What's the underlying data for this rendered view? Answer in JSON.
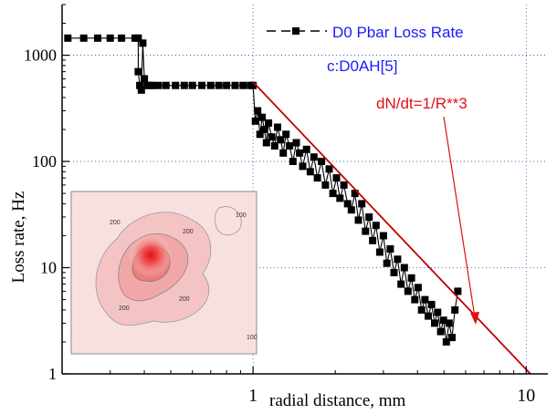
{
  "chart_data": {
    "type": "scatter",
    "title": "",
    "xlabel": "radial distance, mm",
    "ylabel": "Loss rate, Hz",
    "x_scale": "log",
    "y_scale": "log",
    "xlim": [
      0.2,
      12
    ],
    "ylim": [
      1,
      3000
    ],
    "x_ticks": [
      1,
      10
    ],
    "x_tick_labels": [
      "1",
      "10"
    ],
    "y_ticks": [
      1,
      10,
      100,
      1000
    ],
    "y_tick_labels": [
      "1",
      "10",
      "100",
      "1000"
    ],
    "grid": true,
    "legend_position": "top-right",
    "series": [
      {
        "name": "D0 Pbar Loss Rate",
        "color": "#000000",
        "marker": "square",
        "x": [
          0.21,
          0.24,
          0.27,
          0.3,
          0.33,
          0.37,
          0.38,
          0.38,
          0.385,
          0.39,
          0.395,
          0.4,
          0.41,
          0.42,
          0.43,
          0.45,
          0.48,
          0.52,
          0.56,
          0.6,
          0.65,
          0.7,
          0.75,
          0.8,
          0.86,
          0.92,
          0.98,
          1.0,
          1.02,
          1.04,
          1.06,
          1.08,
          1.1,
          1.12,
          1.14,
          1.17,
          1.2,
          1.23,
          1.26,
          1.29,
          1.32,
          1.36,
          1.4,
          1.44,
          1.48,
          1.52,
          1.57,
          1.62,
          1.67,
          1.72,
          1.78,
          1.84,
          1.9,
          1.96,
          2.02,
          2.08,
          2.15,
          2.22,
          2.29,
          2.36,
          2.43,
          2.5,
          2.58,
          2.66,
          2.74,
          2.82,
          2.91,
          3.0,
          3.09,
          3.18,
          3.28,
          3.38,
          3.48,
          3.58,
          3.69,
          3.8,
          3.91,
          4.02,
          4.14,
          4.26,
          4.38,
          4.5,
          4.62,
          4.74,
          4.86,
          4.98,
          5.1,
          5.22,
          5.35,
          5.48,
          5.62
        ],
        "y": [
          1450,
          1450,
          1450,
          1450,
          1450,
          1450,
          1450,
          700,
          520,
          470,
          1300,
          600,
          520,
          520,
          520,
          520,
          520,
          520,
          520,
          520,
          520,
          520,
          520,
          520,
          520,
          520,
          520,
          520,
          240,
          300,
          180,
          260,
          200,
          150,
          230,
          170,
          140,
          210,
          160,
          120,
          180,
          140,
          100,
          150,
          120,
          90,
          130,
          80,
          110,
          70,
          100,
          60,
          85,
          50,
          70,
          45,
          60,
          40,
          35,
          50,
          28,
          40,
          22,
          30,
          18,
          25,
          14,
          20,
          11,
          15,
          9,
          12,
          7,
          10,
          6,
          8,
          5,
          6.5,
          4,
          5,
          3.5,
          4.5,
          3,
          3.8,
          2.5,
          3.2,
          2,
          3,
          2.2,
          4,
          6
        ]
      },
      {
        "name": "dN/dt=1/R**3",
        "color": "#c00000",
        "type": "line",
        "x": [
          1.0,
          11.0
        ],
        "y": [
          560,
          0.85
        ]
      }
    ],
    "annotations": [
      {
        "text": "c:D0AH[5]",
        "color": "#1a1aff"
      },
      {
        "text": "dN/dt=1/R**3",
        "color": "#e01010"
      }
    ],
    "inset": {
      "type": "contour",
      "colormap": "white-to-red",
      "contour_labels": [
        "200",
        "100",
        "200",
        "200",
        "200",
        "100"
      ]
    }
  },
  "colors": {
    "axis": "#000000",
    "grid": "#3344aa",
    "fit_line": "#c00000",
    "legend_text": "#1a1aff",
    "annotation_red": "#e01010",
    "inset_bg": "#f9e0e0",
    "inset_border": "#888888"
  }
}
